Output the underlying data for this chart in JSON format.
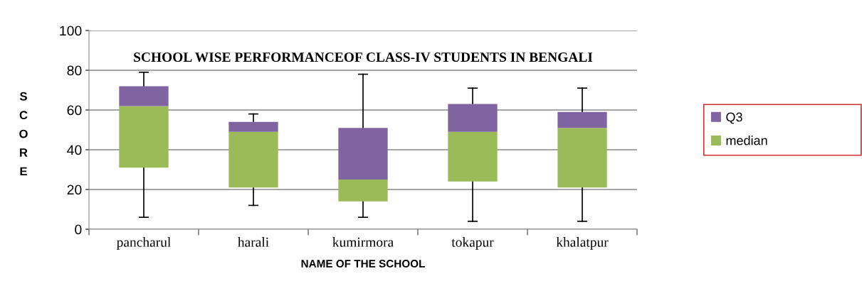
{
  "chart_data": {
    "type": "bar",
    "title": "SCHOOL WISE PERFORMANCEOF CLASS-IV STUDENTS IN BENGALI",
    "xlabel": "NAME OF THE SCHOOL",
    "ylabel": "SCORE",
    "categories": [
      "pancharul",
      "harali",
      "kumirmora",
      "tokapur",
      "khalatpur"
    ],
    "series": [
      {
        "name": "median",
        "color": "#9bbb59",
        "base": [
          31,
          21,
          14,
          24,
          21
        ],
        "values": [
          31,
          28,
          11,
          25,
          30
        ],
        "errors": [
          [
            6,
            31
          ],
          [
            12,
            21
          ],
          [
            6,
            14
          ],
          [
            4,
            24
          ],
          [
            4,
            21
          ]
        ]
      },
      {
        "name": "Q3",
        "color": "#8064a2",
        "base": [
          62,
          49,
          25,
          49,
          51
        ],
        "values": [
          10,
          5,
          26,
          14,
          8
        ],
        "errors": [
          [
            72,
            79
          ],
          [
            54,
            58
          ],
          [
            51,
            78
          ],
          [
            63,
            71
          ],
          [
            59,
            71
          ]
        ]
      }
    ],
    "ylim": [
      0,
      100
    ],
    "yticks": [
      0,
      20,
      40,
      60,
      80,
      100
    ],
    "grid": "y",
    "legend": "right"
  }
}
